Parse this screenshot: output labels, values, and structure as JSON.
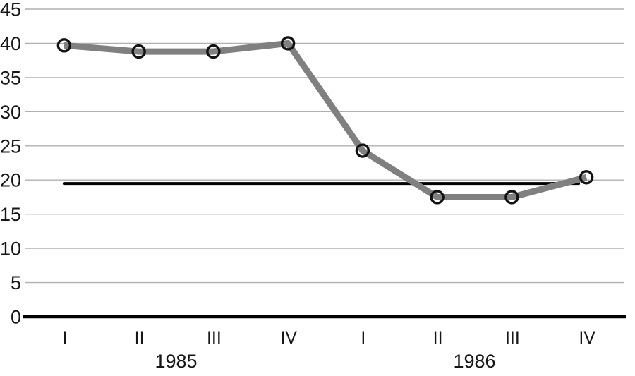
{
  "page": {
    "background": "#ffffff"
  },
  "chart_data": {
    "type": "line",
    "categories": [
      "I",
      "II",
      "III",
      "IV",
      "I",
      "II",
      "III",
      "IV"
    ],
    "category_groups": [
      {
        "label": "1985",
        "from": 0,
        "to": 3
      },
      {
        "label": "1986",
        "from": 4,
        "to": 7
      }
    ],
    "series": [
      {
        "name": "quarterly-values",
        "values": [
          39.7,
          38.8,
          38.8,
          40.0,
          24.3,
          17.5,
          17.5,
          20.4
        ],
        "color": "#808080",
        "line_width": 9,
        "marker": "open-circle",
        "marker_color": "#121212"
      }
    ],
    "reference_line": {
      "value": 19.5,
      "from_index": 0,
      "to_index": 7,
      "color": "#000000",
      "width": 4
    },
    "title": "",
    "xlabel": "",
    "ylabel": "",
    "ylim": [
      0,
      45
    ],
    "ytick_step": 5,
    "yticks": [
      0,
      5,
      10,
      15,
      20,
      25,
      30,
      35,
      40,
      45
    ],
    "grid": "horizontal",
    "gridline_color": "#b0b0b0",
    "axis_color": "#000000",
    "legend": "none"
  }
}
